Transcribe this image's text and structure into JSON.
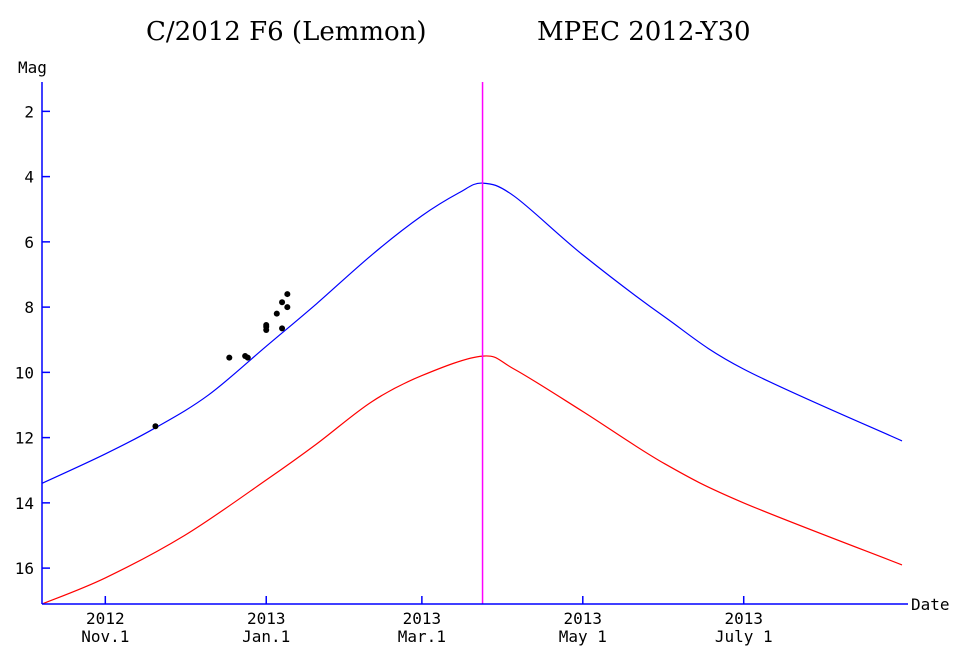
{
  "chart_data": {
    "type": "line",
    "title": "C/2012 F6 (Lemmon)",
    "subtitle": "MPEC 2012-Y30",
    "ylabel": "Mag",
    "xlabel": "Date",
    "ylim": [
      1.1,
      17.1
    ],
    "y_inverted": true,
    "y_ticks": [
      2,
      4,
      6,
      8,
      10,
      12,
      14,
      16
    ],
    "xlim": [
      "2012-10-08",
      "2013-08-30"
    ],
    "x_ticks": [
      {
        "date": "2012-11-01",
        "year": "2012",
        "label": "Nov.1"
      },
      {
        "date": "2013-01-01",
        "year": "2013",
        "label": "Jan.1"
      },
      {
        "date": "2013-03-01",
        "year": "2013",
        "label": "Mar.1"
      },
      {
        "date": "2013-05-01",
        "year": "2013",
        "label": "May 1"
      },
      {
        "date": "2013-07-01",
        "year": "2013",
        "label": "July 1"
      }
    ],
    "marker_line": {
      "date": "2013-03-24",
      "color": "#ff00ff"
    },
    "series": [
      {
        "color": "#0000ff",
        "points": [
          [
            "2012-10-08",
            13.4
          ],
          [
            "2012-11-01",
            12.5
          ],
          [
            "2012-11-20",
            11.7
          ],
          [
            "2012-12-10",
            10.7
          ],
          [
            "2013-01-01",
            9.2
          ],
          [
            "2013-01-20",
            7.9
          ],
          [
            "2013-02-10",
            6.4
          ],
          [
            "2013-03-01",
            5.2
          ],
          [
            "2013-03-15",
            4.5
          ],
          [
            "2013-03-24",
            4.2
          ],
          [
            "2013-04-05",
            4.6
          ],
          [
            "2013-05-01",
            6.4
          ],
          [
            "2013-06-01",
            8.3
          ],
          [
            "2013-07-01",
            9.9
          ],
          [
            "2013-08-30",
            12.1
          ]
        ]
      },
      {
        "color": "#ff0000",
        "points": [
          [
            "2012-10-08",
            17.1
          ],
          [
            "2012-11-01",
            16.3
          ],
          [
            "2012-12-01",
            15.0
          ],
          [
            "2013-01-01",
            13.3
          ],
          [
            "2013-01-20",
            12.2
          ],
          [
            "2013-02-10",
            10.9
          ],
          [
            "2013-03-01",
            10.1
          ],
          [
            "2013-03-24",
            9.5
          ],
          [
            "2013-04-05",
            9.9
          ],
          [
            "2013-05-01",
            11.2
          ],
          [
            "2013-06-01",
            12.8
          ],
          [
            "2013-07-01",
            14.0
          ],
          [
            "2013-08-30",
            15.9
          ]
        ]
      }
    ],
    "observations": [
      [
        "2012-11-20",
        11.65
      ],
      [
        "2012-12-18",
        9.55
      ],
      [
        "2012-12-24",
        9.5
      ],
      [
        "2012-12-25",
        9.55
      ],
      [
        "2013-01-01",
        8.6
      ],
      [
        "2013-01-01",
        8.55
      ],
      [
        "2013-01-01",
        8.7
      ],
      [
        "2013-01-05",
        8.2
      ],
      [
        "2013-01-07",
        8.65
      ],
      [
        "2013-01-07",
        7.85
      ],
      [
        "2013-01-09",
        7.6
      ],
      [
        "2013-01-09",
        8.0
      ]
    ]
  },
  "colors": {
    "axis": "#0000ff",
    "line_upper": "#0000ff",
    "line_lower": "#ff0000",
    "marker": "#ff00ff",
    "points": "#000000"
  }
}
